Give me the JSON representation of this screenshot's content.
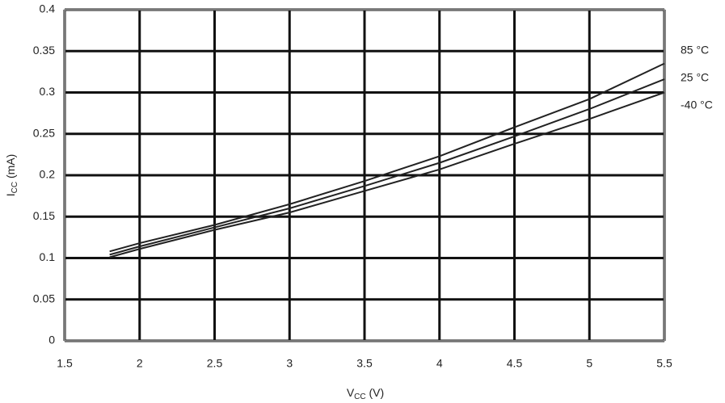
{
  "chart_data": {
    "type": "line",
    "x": [
      1.8,
      2,
      2.5,
      3,
      3.5,
      4,
      4.5,
      5,
      5.5
    ],
    "series": [
      {
        "name": "85 °C",
        "color": "#222222",
        "values": [
          0.108,
          0.118,
          0.14,
          0.165,
          0.193,
          0.223,
          0.258,
          0.292,
          0.335
        ]
      },
      {
        "name": "25 °C",
        "color": "#222222",
        "values": [
          0.104,
          0.114,
          0.137,
          0.16,
          0.187,
          0.215,
          0.247,
          0.28,
          0.316
        ]
      },
      {
        "name": "-40 °C",
        "color": "#222222",
        "values": [
          0.101,
          0.111,
          0.134,
          0.155,
          0.181,
          0.207,
          0.238,
          0.268,
          0.3
        ]
      }
    ],
    "xlabel": {
      "main": "V",
      "sub": "CC",
      "rest": " (V)"
    },
    "ylabel": {
      "main": "I",
      "sub": "CC",
      "rest": " (mA)"
    },
    "xlim": [
      1.5,
      5.5
    ],
    "xticks": [
      1.5,
      2,
      2.5,
      3,
      3.5,
      4,
      4.5,
      5,
      5.5
    ],
    "ylim": [
      0,
      0.4
    ],
    "yticks": [
      0,
      0.05,
      0.1,
      0.15,
      0.2,
      0.25,
      0.3,
      0.35,
      0.4
    ],
    "grid": true
  }
}
